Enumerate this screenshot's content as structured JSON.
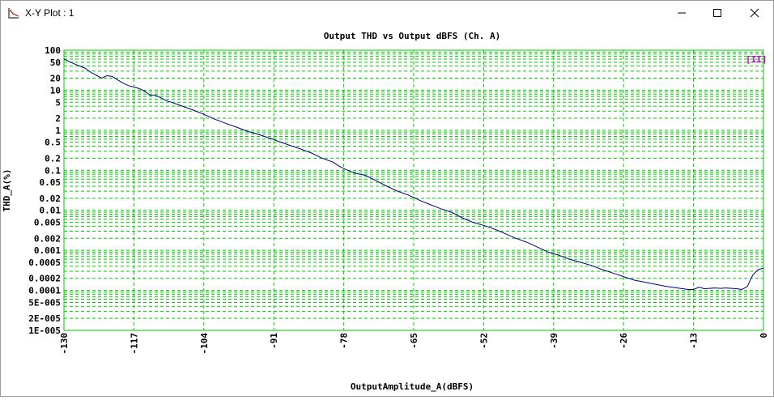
{
  "window": {
    "title": "X-Y Plot : 1",
    "icons": {
      "app": "xy-plot-icon",
      "minimize": "minimize-icon",
      "maximize": "maximize-icon",
      "close": "close-icon"
    }
  },
  "chart_data": {
    "type": "line",
    "title": "Output THD vs Output dBFS (Ch. A)",
    "xlabel": "OutputAmplitude_A(dBFS)",
    "ylabel": "THD_A(%)",
    "xlim": [
      -130,
      0
    ],
    "ylim": [
      1e-05,
      100
    ],
    "yscale": "log",
    "grid": true,
    "grid_color": "#00cc00",
    "line_color": "#000080",
    "x_ticks": [
      "-130",
      "-117",
      "-104",
      "-91",
      "-78",
      "-65",
      "-52",
      "-39",
      "-26",
      "-13",
      "0"
    ],
    "y_ticks": [
      {
        "v": 100,
        "label": "100"
      },
      {
        "v": 50,
        "label": "50"
      },
      {
        "v": 20,
        "label": "20"
      },
      {
        "v": 10,
        "label": "10"
      },
      {
        "v": 5,
        "label": "5"
      },
      {
        "v": 2,
        "label": "2"
      },
      {
        "v": 1,
        "label": "1"
      },
      {
        "v": 0.5,
        "label": "0.5"
      },
      {
        "v": 0.2,
        "label": "0.2"
      },
      {
        "v": 0.1,
        "label": "0.1"
      },
      {
        "v": 0.05,
        "label": "0.05"
      },
      {
        "v": 0.02,
        "label": "0.02"
      },
      {
        "v": 0.01,
        "label": "0.01"
      },
      {
        "v": 0.005,
        "label": "0.005"
      },
      {
        "v": 0.002,
        "label": "0.002"
      },
      {
        "v": 0.001,
        "label": "0.001"
      },
      {
        "v": 0.0005,
        "label": "0.0005"
      },
      {
        "v": 0.0002,
        "label": "0.0002"
      },
      {
        "v": 0.0001,
        "label": "0.0001"
      },
      {
        "v": 5e-05,
        "label": "5E-005"
      },
      {
        "v": 2e-05,
        "label": "2E-005"
      },
      {
        "v": 1e-05,
        "label": "1E-005"
      }
    ],
    "series": [
      {
        "x": [
          -130,
          -128,
          -126,
          -125,
          -123,
          -122,
          -121,
          -120,
          -119,
          -118,
          -117,
          -116,
          -115,
          -114,
          -113,
          -112,
          -111,
          -110,
          -108,
          -106,
          -104,
          -102,
          -100,
          -98,
          -96,
          -94,
          -92,
          -90,
          -88,
          -86,
          -84,
          -82,
          -80,
          -79,
          -78,
          -76,
          -74,
          -72,
          -70,
          -68,
          -66,
          -64,
          -62,
          -60,
          -58,
          -56,
          -54,
          -52,
          -50,
          -48,
          -46,
          -44,
          -42,
          -40,
          -38,
          -36,
          -34,
          -32,
          -30,
          -28,
          -26,
          -24,
          -22,
          -20,
          -18,
          -16,
          -14,
          -13,
          -12,
          -11,
          -10,
          -9,
          -8,
          -7,
          -6,
          -5,
          -4,
          -3,
          -2,
          -1,
          0
        ],
        "y": [
          60,
          45,
          35,
          28,
          20,
          23,
          22,
          18,
          15,
          13,
          12,
          11,
          9.5,
          7.5,
          7.5,
          6.5,
          5.5,
          5,
          4,
          3.2,
          2.5,
          1.9,
          1.5,
          1.2,
          0.95,
          0.8,
          0.65,
          0.52,
          0.42,
          0.34,
          0.27,
          0.2,
          0.16,
          0.13,
          0.11,
          0.085,
          0.075,
          0.055,
          0.04,
          0.03,
          0.024,
          0.018,
          0.014,
          0.011,
          0.009,
          0.0065,
          0.005,
          0.0042,
          0.0034,
          0.0026,
          0.002,
          0.0016,
          0.0012,
          0.0009,
          0.00075,
          0.0006,
          0.0005,
          0.00042,
          0.00033,
          0.00027,
          0.00022,
          0.00018,
          0.00016,
          0.00014,
          0.000125,
          0.000115,
          0.000105,
          0.000105,
          0.00012,
          0.00011,
          0.000112,
          0.000115,
          0.000112,
          0.000115,
          0.000112,
          0.00011,
          0.000105,
          0.000125,
          0.00024,
          0.00033,
          0.00036
        ]
      }
    ],
    "badge": {
      "text": "[II]",
      "color": "#cc00cc"
    }
  }
}
